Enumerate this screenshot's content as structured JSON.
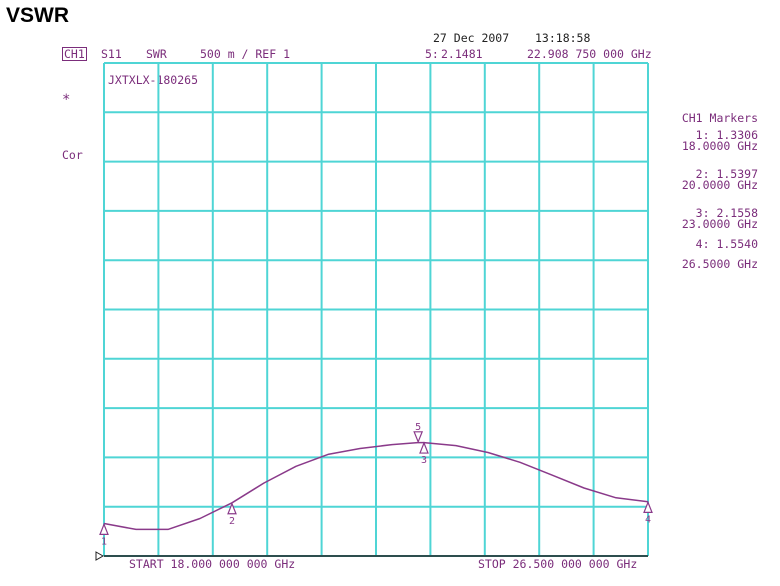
{
  "page": {
    "heading": "VSWR"
  },
  "header": {
    "date": "27 Dec 2007",
    "time": "13:18:58",
    "channel": "CH1",
    "param": "S11",
    "format": "SWR",
    "scale": "500 m / REF 1",
    "active_marker": "5:",
    "active_marker_value": "2.1481",
    "active_marker_freq": "22.908 750 000 GHz"
  },
  "side": {
    "star": "*",
    "cor": "Cor"
  },
  "markers_panel": {
    "title": "CH1 Markers",
    "items": [
      {
        "id": "1:",
        "value": "1.3306",
        "freq": "18.0000 GHz"
      },
      {
        "id": "2:",
        "value": "1.5397",
        "freq": "20.0000 GHz"
      },
      {
        "id": "3:",
        "value": "2.1558",
        "freq": "23.0000 GHz"
      },
      {
        "id": "4:",
        "value": "1.5540",
        "freq": "26.5000 GHz"
      }
    ]
  },
  "colors": {
    "grid": "#4fd5d5",
    "trace": "#8a3a8a",
    "text": "#7b2d7b",
    "frame": "#222222"
  },
  "chart_data": {
    "type": "line",
    "annotation": "JXTXLX-180265",
    "x_start_label": "START 18.000 000 000 GHz",
    "x_stop_label": "STOP 26.500 000 000 GHz",
    "xlim": [
      18.0,
      26.5
    ],
    "ylim": [
      1.0,
      6.0
    ],
    "grid": true,
    "series": [
      {
        "x": [
          18.0,
          18.5,
          19.0,
          19.5,
          20.0,
          20.5,
          21.0,
          21.5,
          22.0,
          22.5,
          22.9,
          23.0,
          23.5,
          24.0,
          24.5,
          25.0,
          25.5,
          26.0,
          26.5
        ],
        "y": [
          1.33,
          1.27,
          1.27,
          1.38,
          1.54,
          1.74,
          1.91,
          2.03,
          2.09,
          2.13,
          2.15,
          2.15,
          2.12,
          2.05,
          1.95,
          1.82,
          1.69,
          1.59,
          1.55
        ]
      }
    ],
    "markers": [
      {
        "label": "1",
        "x": 18.0,
        "y": 1.3306,
        "pointer": "up"
      },
      {
        "label": "2",
        "x": 20.0,
        "y": 1.5397,
        "pointer": "up"
      },
      {
        "label": "5",
        "x": 22.90875,
        "y": 2.1481,
        "pointer": "down"
      },
      {
        "label": "3",
        "x": 23.0,
        "y": 2.1558,
        "pointer": "up"
      },
      {
        "label": "4",
        "x": 26.5,
        "y": 1.554,
        "pointer": "up"
      }
    ]
  }
}
